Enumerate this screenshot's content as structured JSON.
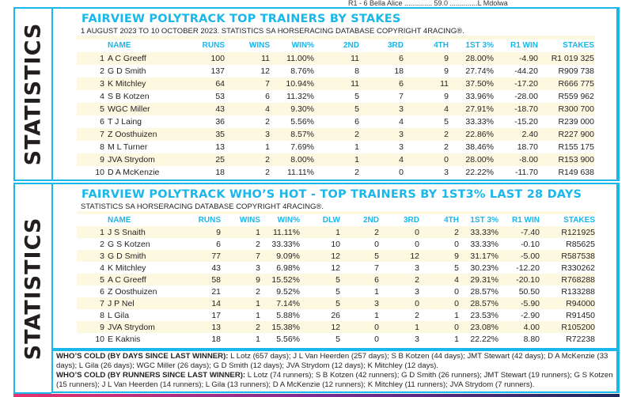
{
  "top_strip": "R1 - 6   Bella Alice .............. 59.0 ..............L Mdolwa",
  "side_label": "STATISTICS",
  "colors": {
    "accent": "#1ab7ea",
    "stripe": "#fdf9e1",
    "text": "#231f20"
  },
  "table1": {
    "title": "FAIRVIEW POLYTRACK TOP TRAINERS BY STAKES",
    "subtitle": "1 AUGUST 2023 TO 10 OCTOBER 2023. STATISTICS SA HORSERACING DATABASE COPYRIGHT 4RACING®.",
    "headers": [
      "",
      "NAME",
      "RUNS",
      "WINS",
      "WIN%",
      "2ND",
      "3RD",
      "4TH",
      "1ST 3%",
      "R1 WIN",
      "STAKES"
    ],
    "rows": [
      [
        "1",
        "A C Greeff",
        "100",
        "11",
        "11.00%",
        "11",
        "6",
        "9",
        "28.00%",
        "-4.90",
        "R1 019 325"
      ],
      [
        "2",
        "G D Smith",
        "137",
        "12",
        "8.76%",
        "8",
        "18",
        "9",
        "27.74%",
        "-44.20",
        "R909 738"
      ],
      [
        "3",
        "K Mitchley",
        "64",
        "7",
        "10.94%",
        "11",
        "6",
        "11",
        "37.50%",
        "-17.20",
        "R666 775"
      ],
      [
        "4",
        "S B Kotzen",
        "53",
        "6",
        "11.32%",
        "5",
        "7",
        "9",
        "33.96%",
        "-28.00",
        "R559 962"
      ],
      [
        "5",
        "WGC Miller",
        "43",
        "4",
        "9.30%",
        "5",
        "3",
        "4",
        "27.91%",
        "-18.70",
        "R300 700"
      ],
      [
        "6",
        "T J Laing",
        "36",
        "2",
        "5.56%",
        "6",
        "4",
        "5",
        "33.33%",
        "-15.20",
        "R239 000"
      ],
      [
        "7",
        "Z Oosthuizen",
        "35",
        "3",
        "8.57%",
        "2",
        "3",
        "2",
        "22.86%",
        "2.40",
        "R227 900"
      ],
      [
        "8",
        "M L Turner",
        "13",
        "1",
        "7.69%",
        "1",
        "3",
        "2",
        "38.46%",
        "18.70",
        "R155 175"
      ],
      [
        "9",
        "JVA Strydom",
        "25",
        "2",
        "8.00%",
        "1",
        "4",
        "0",
        "28.00%",
        "-8.00",
        "R153 900"
      ],
      [
        "10",
        "D A McKenzie",
        "18",
        "2",
        "11.11%",
        "2",
        "0",
        "3",
        "22.22%",
        "-11.70",
        "R149 638"
      ]
    ]
  },
  "table2": {
    "title": "FAIRVIEW POLYTRACK WHO’S HOT - TOP TRAINERS BY 1ST3% LAST 28 DAYS",
    "subtitle": "STATISTICS SA HORSERACING DATABASE COPYRIGHT 4RACING®.",
    "headers": [
      "",
      "NAME",
      "RUNS",
      "WINS",
      "WIN%",
      "DLW",
      "2ND",
      "3RD",
      "4TH",
      "1ST 3%",
      "R1 WIN",
      "STAKES"
    ],
    "rows": [
      [
        "1",
        "J S Snaith",
        "9",
        "1",
        "11.11%",
        "1",
        "2",
        "0",
        "2",
        "33.33%",
        "-7.40",
        "R121925"
      ],
      [
        "2",
        "G S Kotzen",
        "6",
        "2",
        "33.33%",
        "10",
        "0",
        "0",
        "0",
        "33.33%",
        "-0.10",
        "R85625"
      ],
      [
        "3",
        "G D Smith",
        "77",
        "7",
        "9.09%",
        "12",
        "5",
        "12",
        "9",
        "31.17%",
        "-5.00",
        "R587538"
      ],
      [
        "4",
        "K Mitchley",
        "43",
        "3",
        "6.98%",
        "12",
        "7",
        "3",
        "5",
        "30.23%",
        "-12.20",
        "R330262"
      ],
      [
        "5",
        "A C Greeff",
        "58",
        "9",
        "15.52%",
        "5",
        "6",
        "2",
        "4",
        "29.31%",
        "-20.10",
        "R768288"
      ],
      [
        "6",
        "Z Oosthuizen",
        "21",
        "2",
        "9.52%",
        "5",
        "1",
        "3",
        "0",
        "28.57%",
        "50.50",
        "R133288"
      ],
      [
        "7",
        "J P Nel",
        "14",
        "1",
        "7.14%",
        "5",
        "3",
        "0",
        "0",
        "28.57%",
        "-5.90",
        "R94000"
      ],
      [
        "8",
        "L Gila",
        "17",
        "1",
        "5.88%",
        "26",
        "1",
        "2",
        "1",
        "23.53%",
        "-2.90",
        "R91450"
      ],
      [
        "9",
        "JVA Strydom",
        "13",
        "2",
        "15.38%",
        "12",
        "0",
        "1",
        "0",
        "23.08%",
        "4.00",
        "R105200"
      ],
      [
        "10",
        "E Kaknis",
        "18",
        "1",
        "5.56%",
        "5",
        "0",
        "3",
        "1",
        "22.22%",
        "8.80",
        "R72238"
      ]
    ]
  },
  "footer": {
    "cold_days_label": "WHO’S COLD (BY DAYS SINCE LAST WINNER):",
    "cold_days_text": " L Lotz (657 days); J L Van Heerden (257 days); S B Kotzen (44 days); JMT Stewart (42 days); D A McKenzie (33 days); L Gila (26 days); WGC Miller (26 days); G D Smith (12 days); JVA Strydom (12 days); K Mitchley (12 days).",
    "cold_runners_label": "WHO’S COLD (BY RUNNERS SINCE LAST WINNER):",
    "cold_runners_text": " L Lotz (74 runners); S B Kotzen (42 runners); G D Smith (26 runners); JMT Stewart (19 runners); G S Kotzen (15 runners); J L Van Heerden (14 runners); L Gila (13 runners); D A McKenzie (12 runners); K Mitchley (11 runners); JVA Strydom (7 runners)."
  }
}
